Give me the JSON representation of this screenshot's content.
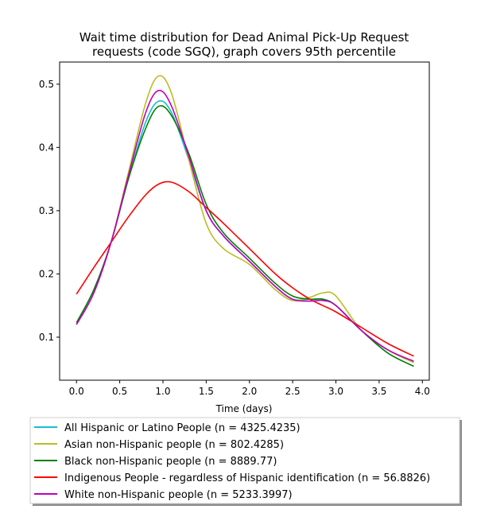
{
  "chart_data": {
    "type": "line",
    "title": [
      "Wait time distribution  for Dead Animal Pick-Up Request",
      "requests (code SGQ), graph covers 95th percentile"
    ],
    "xlabel": "Time (days)",
    "ylabel": "",
    "xlim": [
      -0.195,
      4.08
    ],
    "ylim": [
      0.032,
      0.535
    ],
    "xticks": [
      0.0,
      0.5,
      1.0,
      1.5,
      2.0,
      2.5,
      3.0,
      3.5,
      4.0
    ],
    "xtick_labels": [
      "0.0",
      "0.5",
      "1.0",
      "1.5",
      "2.0",
      "2.5",
      "3.0",
      "3.5",
      "4.0"
    ],
    "yticks": [
      0.1,
      0.2,
      0.3,
      0.4,
      0.5
    ],
    "ytick_labels": [
      "0.1",
      "0.2",
      "0.3",
      "0.4",
      "0.5"
    ],
    "grid": false,
    "legend_position": "below",
    "x": [
      0.0,
      0.2,
      0.4,
      0.6,
      0.8,
      0.95,
      1.1,
      1.3,
      1.5,
      1.7,
      2.0,
      2.3,
      2.5,
      2.7,
      2.85,
      3.0,
      3.3,
      3.6,
      3.9
    ],
    "series": [
      {
        "name": "All Hispanic or Latino People (n = 4325.4235)",
        "color": "#17becf",
        "values": [
          0.12,
          0.17,
          0.25,
          0.35,
          0.44,
          0.473,
          0.455,
          0.38,
          0.3,
          0.26,
          0.22,
          0.18,
          0.16,
          0.16,
          0.16,
          0.15,
          0.11,
          0.08,
          0.06
        ]
      },
      {
        "name": "Asian non-Hispanic people (n = 802.4285)",
        "color": "#bcbd22",
        "values": [
          0.12,
          0.17,
          0.25,
          0.36,
          0.47,
          0.513,
          0.485,
          0.38,
          0.28,
          0.24,
          0.215,
          0.175,
          0.158,
          0.163,
          0.17,
          0.165,
          0.11,
          0.08,
          0.06
        ]
      },
      {
        "name": "Black non-Hispanic people (n = 8889.77)",
        "color": "#008000",
        "values": [
          0.123,
          0.175,
          0.25,
          0.35,
          0.43,
          0.465,
          0.45,
          0.39,
          0.31,
          0.265,
          0.225,
          0.185,
          0.165,
          0.16,
          0.16,
          0.15,
          0.11,
          0.075,
          0.054
        ]
      },
      {
        "name": "Indigenous People - regardless of Hispanic identification (n = 56.8826)",
        "color": "#ff0000",
        "values": [
          0.168,
          0.21,
          0.25,
          0.29,
          0.325,
          0.342,
          0.345,
          0.33,
          0.305,
          0.28,
          0.24,
          0.2,
          0.178,
          0.16,
          0.15,
          0.14,
          0.115,
          0.09,
          0.07
        ]
      },
      {
        "name": "White non-Hispanic people (n = 5233.3997)",
        "color": "#bf00bf",
        "values": [
          0.12,
          0.17,
          0.25,
          0.355,
          0.455,
          0.49,
          0.465,
          0.385,
          0.3,
          0.26,
          0.22,
          0.18,
          0.16,
          0.157,
          0.158,
          0.15,
          0.11,
          0.08,
          0.062
        ]
      }
    ]
  }
}
